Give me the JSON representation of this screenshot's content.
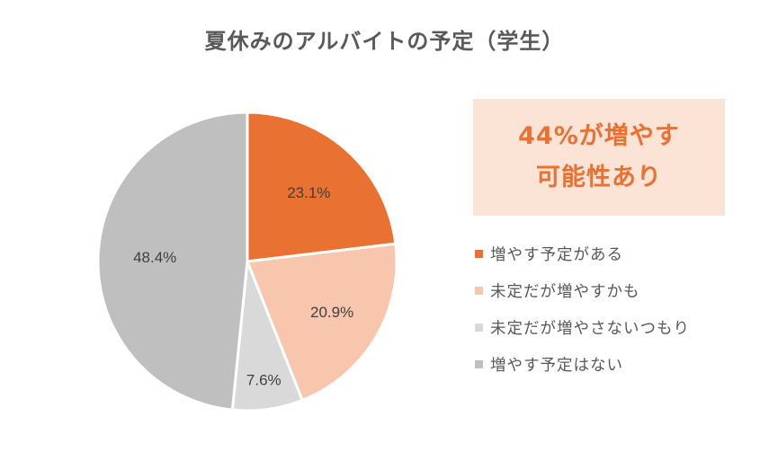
{
  "title": "夏休みのアルバイトの予定（学生）",
  "callout": {
    "line1": "44%が増やす",
    "line2": "可能性あり",
    "background": "#fbe3d6",
    "text_color": "#e97132"
  },
  "legend": {
    "items": [
      {
        "label": "増やす予定がある",
        "color": "#e97132"
      },
      {
        "label": "未定だが増やすかも",
        "color": "#f7c6ac"
      },
      {
        "label": "未定だが増やさないつもり",
        "color": "#d9d9d9"
      },
      {
        "label": "増やす予定はない",
        "color": "#bfbfbf"
      }
    ]
  },
  "slice_labels": [
    "23.1%",
    "20.9%",
    "7.6%",
    "48.4%"
  ],
  "chart_data": {
    "type": "pie",
    "title": "夏休みのアルバイトの予定（学生）",
    "categories": [
      "増やす予定がある",
      "未定だが増やすかも",
      "未定だが増やさないつもり",
      "増やす予定はない"
    ],
    "values": [
      23.1,
      20.9,
      7.6,
      48.4
    ],
    "colors": [
      "#e97132",
      "#f7c6ac",
      "#d9d9d9",
      "#bfbfbf"
    ],
    "data_labels": [
      "23.1%",
      "20.9%",
      "7.6%",
      "48.4%"
    ],
    "legend_position": "right",
    "annotation": "44%が増やす可能性あり",
    "start_angle_deg": 0,
    "direction": "clockwise"
  }
}
